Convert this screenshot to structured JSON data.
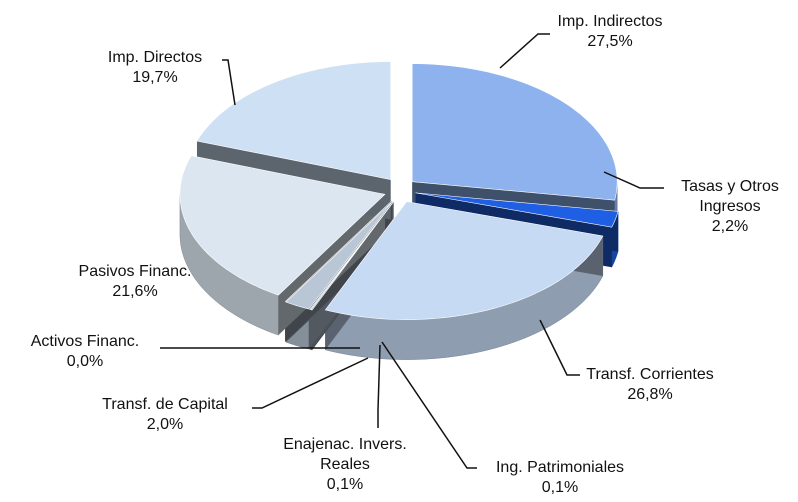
{
  "chart_data": {
    "type": "pie",
    "categories": [
      "Imp. Indirectos",
      "Tasas y Otros Ingresos",
      "Transf. Corrientes",
      "Ing. Patrimoniales",
      "Enajenac. Invers. Reales",
      "Transf. de Capital",
      "Activos Financ.",
      "Pasivos Financ.",
      "Imp. Directos"
    ],
    "values": [
      27.5,
      2.2,
      26.8,
      0.1,
      0.1,
      2.0,
      0.0,
      21.6,
      19.7
    ],
    "value_labels": [
      "27,5%",
      "2,2%",
      "26,8%",
      "0,1%",
      "0,1%",
      "2,0%",
      "0,0%",
      "21,6%",
      "19,7%"
    ],
    "colors": [
      "#8db2ee",
      "#1f5fe3",
      "#c6daf4",
      "#9aa8b8",
      "#a9b6c4",
      "#b8c6d6",
      "#8e9aa8",
      "#dbe6f0",
      "#cde0f4"
    ]
  }
}
